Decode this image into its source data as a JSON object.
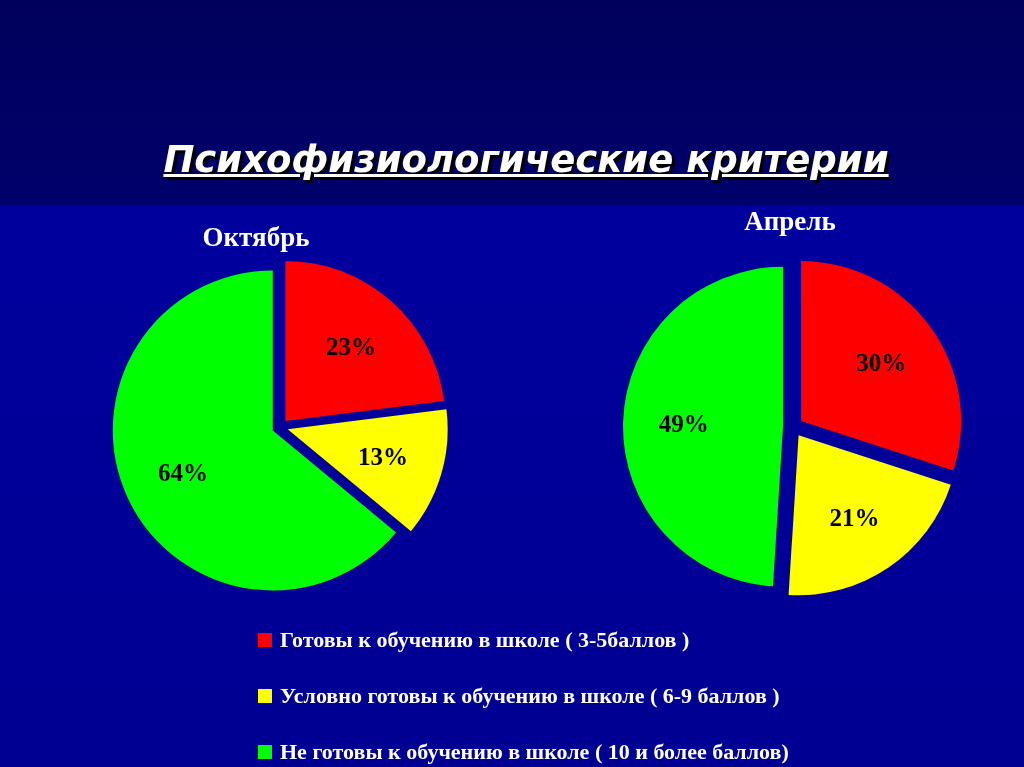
{
  "chart_data": [
    {
      "type": "pie",
      "title": "Психофизиологические критерии",
      "subtitle": "Октябрь",
      "categories": [
        "Готовы к обучению в школе ( 3-5баллов )",
        "Условно готовы к обучению в школе ( 6-9 баллов )",
        "Не готовы к обучению в школе ( 10 и более баллов)"
      ],
      "values": [
        23,
        13,
        64
      ],
      "value_labels": [
        "23%",
        "13%",
        "64%"
      ],
      "colors": [
        "#ff0000",
        "#ffff00",
        "#00ff00"
      ],
      "legend": "bottom"
    },
    {
      "type": "pie",
      "subtitle": "Апрель",
      "categories": [
        null,
        null,
        null
      ],
      "values": [
        30,
        21,
        49
      ],
      "value_labels": [
        "30%",
        "21%",
        "49%"
      ],
      "colors": [
        "#ff0000",
        "#ffff00",
        "#00ff00"
      ]
    }
  ]
}
